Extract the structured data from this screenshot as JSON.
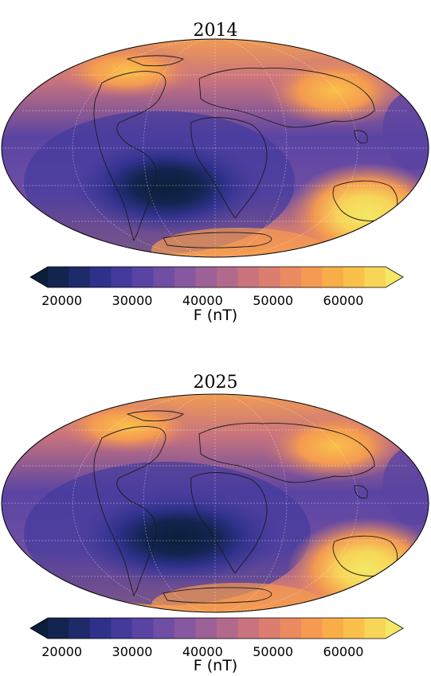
{
  "maps": [
    {
      "title": "2014",
      "colorbar": {
        "label": "F (nT)",
        "ticks": [
          "20000",
          "30000",
          "40000",
          "50000",
          "60000"
        ],
        "tick_values": [
          20000,
          30000,
          40000,
          50000,
          60000
        ],
        "range": [
          18000,
          66000
        ],
        "extend": "both"
      }
    },
    {
      "title": "2025",
      "colorbar": {
        "label": "F (nT)",
        "ticks": [
          "20000",
          "30000",
          "40000",
          "50000",
          "60000"
        ],
        "tick_values": [
          20000,
          30000,
          40000,
          50000,
          60000
        ],
        "range": [
          18000,
          66000
        ],
        "extend": "both"
      }
    }
  ],
  "colormap": {
    "name": "plasma-like",
    "stops": [
      "#0b1e3a",
      "#13244f",
      "#1f2a6b",
      "#2e318a",
      "#433a9c",
      "#5a44a3",
      "#6f4ea3",
      "#85589f",
      "#9c6197",
      "#b26a8c",
      "#c8737e",
      "#db7d6f",
      "#ea8a60",
      "#f49a51",
      "#f8ad48",
      "#f9c14a",
      "#f7d558",
      "#f4e865"
    ]
  },
  "projection": "Mollweide"
}
